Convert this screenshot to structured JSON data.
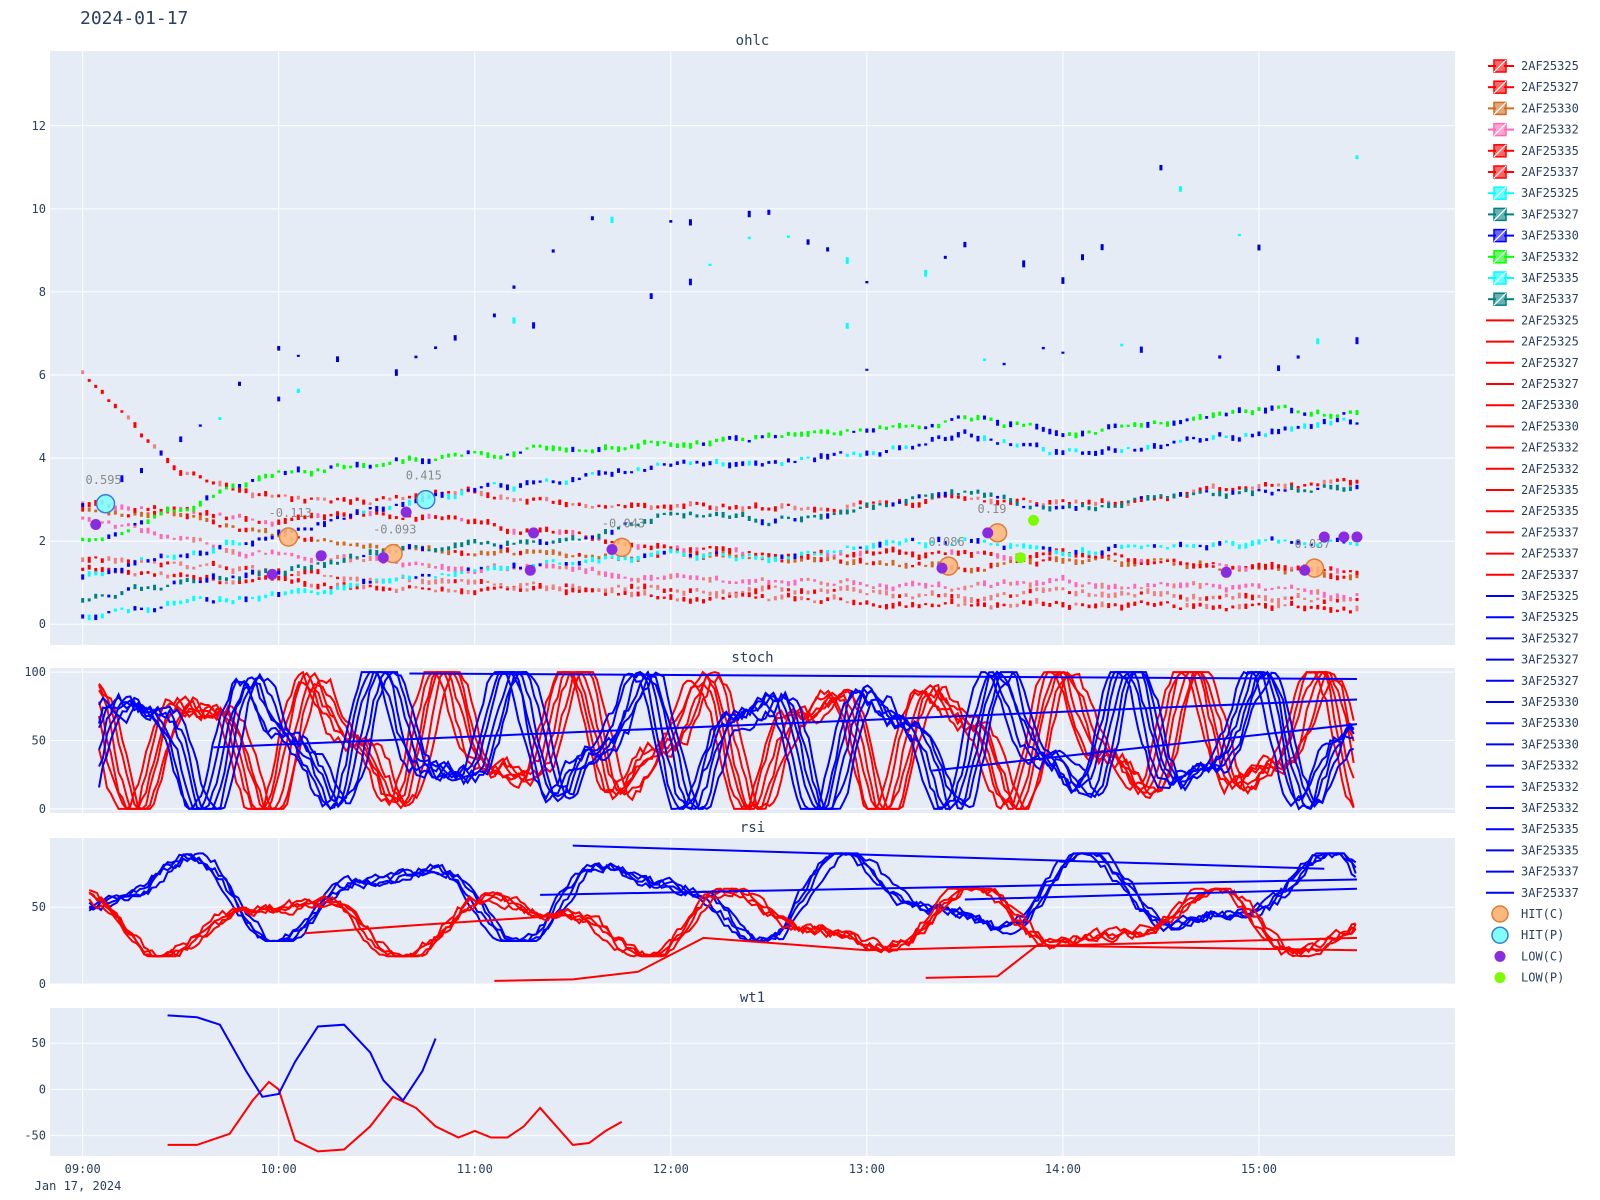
{
  "header": {
    "date": "2024-01-17"
  },
  "colors": {
    "plot_bg": "#e5ecf6",
    "red": "#ff0000",
    "pink": "#ff69b4",
    "salmon": "#f08080",
    "orange_red": "#d2691e",
    "blue": "#0000ff",
    "dark_blue": "#0000cd",
    "cyan": "#00ffff",
    "teal": "#008080",
    "green": "#00ff00",
    "purple": "#8a2be2",
    "hit_c": "#fdb97d",
    "hit_p": "#7fffff"
  },
  "chart_data": [
    {
      "type": "ohlc",
      "title": "ohlc",
      "xlim": [
        "08:50",
        "16:00"
      ],
      "ylim": [
        -0.5,
        13.8
      ],
      "x_ticks": [
        "09:00",
        "10:00",
        "11:00",
        "12:00",
        "13:00",
        "14:00",
        "15:00"
      ],
      "x_sub_label": "Jan 17, 2024",
      "y_ticks": [
        0,
        2,
        4,
        6,
        8,
        10,
        12
      ],
      "series": [
        {
          "name": "2AF25325",
          "color": "#ff0000",
          "x": [
            "09:00",
            "09:30",
            "10:00",
            "10:30",
            "11:00",
            "11:30",
            "12:00",
            "12:30",
            "13:00",
            "13:30",
            "14:00",
            "14:30",
            "15:00",
            "15:30"
          ],
          "y": [
            1.3,
            1.1,
            1.0,
            0.9,
            0.85,
            0.75,
            0.65,
            0.6,
            0.55,
            0.45,
            0.5,
            0.45,
            0.4,
            0.35
          ]
        },
        {
          "name": "2AF25327",
          "color": "#f08080",
          "x": [
            "09:00",
            "09:30",
            "10:00",
            "10:30",
            "11:00",
            "11:30",
            "12:00",
            "12:30",
            "13:00",
            "13:30",
            "14:00",
            "14:30",
            "15:00",
            "15:30"
          ],
          "y": [
            1.6,
            1.4,
            1.25,
            1.1,
            1.0,
            0.95,
            0.85,
            0.8,
            0.75,
            0.65,
            0.75,
            0.7,
            0.65,
            0.6
          ]
        },
        {
          "name": "2AF25330",
          "color": "#ff69b4",
          "x": [
            "09:00",
            "09:30",
            "10:00",
            "10:30",
            "11:00",
            "11:30",
            "12:00",
            "12:30",
            "13:00",
            "13:30",
            "14:00",
            "14:30",
            "15:00",
            "15:30"
          ],
          "y": [
            2.6,
            2.0,
            1.7,
            1.5,
            1.4,
            1.3,
            1.1,
            1.05,
            1.0,
            0.85,
            1.0,
            0.95,
            0.8,
            0.75
          ]
        },
        {
          "name": "2AF25332",
          "color": "#d2691e",
          "x": [
            "09:00",
            "09:30",
            "10:00",
            "10:30",
            "11:00",
            "11:30",
            "12:00",
            "12:30",
            "13:00",
            "13:30",
            "14:00",
            "14:30",
            "15:00",
            "15:30"
          ],
          "y": [
            2.8,
            2.6,
            2.1,
            1.8,
            1.8,
            1.6,
            1.7,
            1.6,
            1.5,
            1.4,
            1.55,
            1.45,
            1.3,
            1.25
          ]
        },
        {
          "name": "2AF25335",
          "color": "#ff0000",
          "x": [
            "09:00",
            "09:30",
            "10:00",
            "10:30",
            "11:00",
            "11:30",
            "12:00",
            "12:30",
            "13:00",
            "13:30",
            "14:00",
            "14:30",
            "15:00",
            "15:30"
          ],
          "y": [
            2.9,
            2.7,
            2.4,
            2.7,
            2.4,
            2.1,
            1.8,
            1.7,
            1.7,
            1.6,
            1.7,
            1.5,
            1.4,
            1.3
          ]
        },
        {
          "name": "2AF25337",
          "color": "#ff0000",
          "x": [
            "09:00",
            "09:30",
            "10:00",
            "10:30",
            "11:00",
            "11:30",
            "12:00",
            "12:30",
            "13:00",
            "13:30",
            "14:00",
            "14:30",
            "15:00",
            "15:30"
          ],
          "y": [
            6.0,
            3.6,
            3.0,
            3.0,
            3.2,
            2.9,
            2.9,
            2.8,
            2.9,
            3.0,
            2.9,
            3.0,
            3.3,
            3.4
          ]
        },
        {
          "name": "3AF25325",
          "color": "#00ffff",
          "x": [
            "09:00",
            "09:30",
            "10:00",
            "10:30",
            "11:00",
            "11:30",
            "12:00",
            "12:30",
            "13:00",
            "13:30",
            "14:00",
            "14:30",
            "15:00",
            "15:30"
          ],
          "y": [
            0.2,
            0.5,
            0.7,
            1.0,
            1.3,
            1.5,
            1.7,
            1.6,
            1.9,
            2.0,
            1.7,
            1.9,
            1.9,
            2.0
          ]
        },
        {
          "name": "3AF25327",
          "color": "#008080",
          "x": [
            "09:00",
            "09:30",
            "10:00",
            "10:30",
            "11:00",
            "11:30",
            "12:00",
            "12:30",
            "13:00",
            "13:30",
            "14:00",
            "14:30",
            "15:00",
            "15:30"
          ],
          "y": [
            0.6,
            1.0,
            1.3,
            1.7,
            2.0,
            2.0,
            2.7,
            2.5,
            2.8,
            3.2,
            2.7,
            3.0,
            3.2,
            3.3
          ]
        },
        {
          "name": "3AF25330",
          "color": "#0000ff",
          "x": [
            "09:00",
            "09:30",
            "10:00",
            "10:30",
            "11:00",
            "11:30",
            "12:00",
            "12:30",
            "13:00",
            "13:30",
            "14:00",
            "14:30",
            "15:00",
            "15:30"
          ],
          "y": [
            1.2,
            1.7,
            2.2,
            2.8,
            3.2,
            3.5,
            3.9,
            3.9,
            4.1,
            4.6,
            4.1,
            4.3,
            4.6,
            4.9
          ]
        },
        {
          "name": "3AF25332",
          "color": "#00ff00",
          "x": [
            "09:00",
            "09:30",
            "10:00",
            "10:30",
            "11:00",
            "11:30",
            "12:00",
            "12:30",
            "13:00",
            "13:30",
            "14:00",
            "14:30",
            "15:00",
            "15:30"
          ],
          "y": [
            2.0,
            2.8,
            3.6,
            3.9,
            4.1,
            4.3,
            4.4,
            4.5,
            4.6,
            5.0,
            4.6,
            4.8,
            5.2,
            5.0
          ]
        },
        {
          "name": "3AF25335",
          "color": "#0000ff",
          "x": [
            "09:00",
            "09:30",
            "10:00",
            "10:30",
            "11:00",
            "11:30",
            "12:00",
            "12:30",
            "13:00",
            "13:30",
            "14:00",
            "14:30",
            "15:00",
            "15:30"
          ],
          "y": [
            3.4,
            4.2,
            5.0,
            5.8,
            6.7,
            7.5,
            7.9,
            9.8,
            6.0,
            6.1,
            6.5,
            7.0,
            6.3,
            6.9
          ]
        },
        {
          "name": "3AF25337",
          "color": "#0000cd",
          "x": [
            "09:00",
            "09:30",
            "10:00",
            "10:30",
            "11:00",
            "11:30",
            "12:00",
            "12:30",
            "13:00",
            "13:30",
            "14:00",
            "14:30",
            "15:00",
            "15:30"
          ],
          "y": [
            3.0,
            4.6,
            6.5,
            6.0,
            6.8,
            9.7,
            10.0,
            10.4,
            8.5,
            9.0,
            8.0,
            10.8,
            9.0,
            11.1
          ]
        }
      ],
      "hits": [
        {
          "type": "HIT(P)",
          "x": "09:07",
          "y": 2.9,
          "label": "0.595"
        },
        {
          "type": "HIT(C)",
          "x": "10:03",
          "y": 2.1,
          "label": "-0.113"
        },
        {
          "type": "HIT(C)",
          "x": "10:35",
          "y": 1.7,
          "label": "-0.093"
        },
        {
          "type": "HIT(P)",
          "x": "10:45",
          "y": 3.0,
          "label": "0.415"
        },
        {
          "type": "HIT(C)",
          "x": "11:45",
          "y": 1.85,
          "label": "-0.043"
        },
        {
          "type": "HIT(C)",
          "x": "13:25",
          "y": 1.4,
          "label": "0.086"
        },
        {
          "type": "HIT(C)",
          "x": "13:40",
          "y": 2.2,
          "label": "0.19"
        },
        {
          "type": "HIT(C)",
          "x": "15:17",
          "y": 1.35,
          "label": "0.037"
        }
      ],
      "lows": [
        {
          "type": "LOW(C)",
          "x": [
            "09:04",
            "09:58",
            "10:13",
            "10:32",
            "10:39",
            "11:18",
            "11:17",
            "11:42",
            "13:23",
            "13:37",
            "14:50",
            "15:14",
            "15:20",
            "15:26",
            "15:30"
          ],
          "y": [
            2.4,
            1.2,
            1.65,
            1.6,
            2.7,
            2.2,
            1.3,
            1.8,
            1.35,
            2.2,
            1.25,
            1.3,
            2.1,
            2.1,
            2.1
          ]
        },
        {
          "type": "LOW(P)",
          "x": [
            "13:47",
            "13:51"
          ],
          "y": [
            1.6,
            2.5
          ]
        }
      ]
    },
    {
      "type": "line",
      "title": "stoch",
      "ylim": [
        -3,
        103
      ],
      "y_ticks": [
        0,
        50,
        100
      ]
    },
    {
      "type": "line",
      "title": "rsi",
      "ylim": [
        0,
        95
      ],
      "y_ticks": [
        0,
        50
      ]
    },
    {
      "type": "line",
      "title": "wt1",
      "ylim": [
        -72,
        88
      ],
      "y_ticks": [
        -50,
        0,
        50
      ],
      "series": [
        {
          "name": "2AF25325",
          "color": "#ff0000",
          "x": [
            "09:26",
            "09:35",
            "09:45",
            "09:52",
            "09:57",
            "10:00",
            "10:05",
            "10:12",
            "10:20",
            "10:28",
            "10:35",
            "10:42",
            "10:48",
            "10:55",
            "11:00",
            "11:05",
            "11:10",
            "11:15",
            "11:20",
            "11:25",
            "11:30",
            "11:35",
            "11:40",
            "11:45"
          ],
          "y": [
            -60,
            -60,
            -48,
            -12,
            8,
            0,
            -55,
            -67,
            -65,
            -40,
            -8,
            -20,
            -40,
            -52,
            -45,
            -52,
            -52,
            -40,
            -20,
            -40,
            -60,
            -58,
            -45,
            -35
          ]
        },
        {
          "name": "3AF25325",
          "color": "#0000ff",
          "x": [
            "09:26",
            "09:35",
            "09:42",
            "09:50",
            "09:55",
            "10:00",
            "10:05",
            "10:12",
            "10:20",
            "10:28",
            "10:32",
            "10:38",
            "10:44",
            "10:48"
          ],
          "y": [
            80,
            78,
            70,
            20,
            -8,
            -5,
            30,
            68,
            70,
            40,
            10,
            -12,
            20,
            55
          ]
        }
      ]
    }
  ],
  "legend": {
    "items": [
      {
        "label": "2AF25325",
        "kind": "candle",
        "color": "#ff0000"
      },
      {
        "label": "2AF25327",
        "kind": "candle",
        "color": "#ff0000"
      },
      {
        "label": "2AF25330",
        "kind": "candle",
        "color": "#d2691e"
      },
      {
        "label": "2AF25332",
        "kind": "candle",
        "color": "#ff69b4"
      },
      {
        "label": "2AF25335",
        "kind": "candle",
        "color": "#ff0000"
      },
      {
        "label": "2AF25337",
        "kind": "candle",
        "color": "#ff0000"
      },
      {
        "label": "3AF25325",
        "kind": "candle",
        "color": "#00ffff"
      },
      {
        "label": "3AF25327",
        "kind": "candle",
        "color": "#008080"
      },
      {
        "label": "3AF25330",
        "kind": "candle",
        "color": "#0000ff"
      },
      {
        "label": "3AF25332",
        "kind": "candle",
        "color": "#00ff00"
      },
      {
        "label": "3AF25335",
        "kind": "candle",
        "color": "#00ffff"
      },
      {
        "label": "3AF25337",
        "kind": "candle",
        "color": "#008080"
      },
      {
        "label": "2AF25325",
        "kind": "line",
        "color": "#ff0000"
      },
      {
        "label": "2AF25325",
        "kind": "line",
        "color": "#ff0000"
      },
      {
        "label": "2AF25327",
        "kind": "line",
        "color": "#ff0000"
      },
      {
        "label": "2AF25327",
        "kind": "line",
        "color": "#ff0000"
      },
      {
        "label": "2AF25330",
        "kind": "line",
        "color": "#ff0000"
      },
      {
        "label": "2AF25330",
        "kind": "line",
        "color": "#ff0000"
      },
      {
        "label": "2AF25332",
        "kind": "line",
        "color": "#ff0000"
      },
      {
        "label": "2AF25332",
        "kind": "line",
        "color": "#ff0000"
      },
      {
        "label": "2AF25335",
        "kind": "line",
        "color": "#ff0000"
      },
      {
        "label": "2AF25335",
        "kind": "line",
        "color": "#ff0000"
      },
      {
        "label": "2AF25337",
        "kind": "line",
        "color": "#ff0000"
      },
      {
        "label": "2AF25337",
        "kind": "line",
        "color": "#ff0000"
      },
      {
        "label": "2AF25337",
        "kind": "line",
        "color": "#ff0000"
      },
      {
        "label": "3AF25325",
        "kind": "line",
        "color": "#0000ff"
      },
      {
        "label": "3AF25325",
        "kind": "line",
        "color": "#0000ff"
      },
      {
        "label": "3AF25327",
        "kind": "line",
        "color": "#0000ff"
      },
      {
        "label": "3AF25327",
        "kind": "line",
        "color": "#0000ff"
      },
      {
        "label": "3AF25327",
        "kind": "line",
        "color": "#0000ff"
      },
      {
        "label": "3AF25330",
        "kind": "line",
        "color": "#0000ff"
      },
      {
        "label": "3AF25330",
        "kind": "line",
        "color": "#0000ff"
      },
      {
        "label": "3AF25330",
        "kind": "line",
        "color": "#0000ff"
      },
      {
        "label": "3AF25332",
        "kind": "line",
        "color": "#0000ff"
      },
      {
        "label": "3AF25332",
        "kind": "line",
        "color": "#0000ff"
      },
      {
        "label": "3AF25332",
        "kind": "line",
        "color": "#0000ff"
      },
      {
        "label": "3AF25335",
        "kind": "line",
        "color": "#0000ff"
      },
      {
        "label": "3AF25335",
        "kind": "line",
        "color": "#0000ff"
      },
      {
        "label": "3AF25337",
        "kind": "line",
        "color": "#0000ff"
      },
      {
        "label": "3AF25337",
        "kind": "line",
        "color": "#0000ff"
      },
      {
        "label": "HIT(C)",
        "kind": "circle",
        "color": "#fdb97d"
      },
      {
        "label": "HIT(P)",
        "kind": "circle",
        "color": "#7fffff"
      },
      {
        "label": "LOW(C)",
        "kind": "dot",
        "color": "#8a2be2"
      },
      {
        "label": "LOW(P)",
        "kind": "dot",
        "color": "#7cfc00"
      }
    ]
  }
}
